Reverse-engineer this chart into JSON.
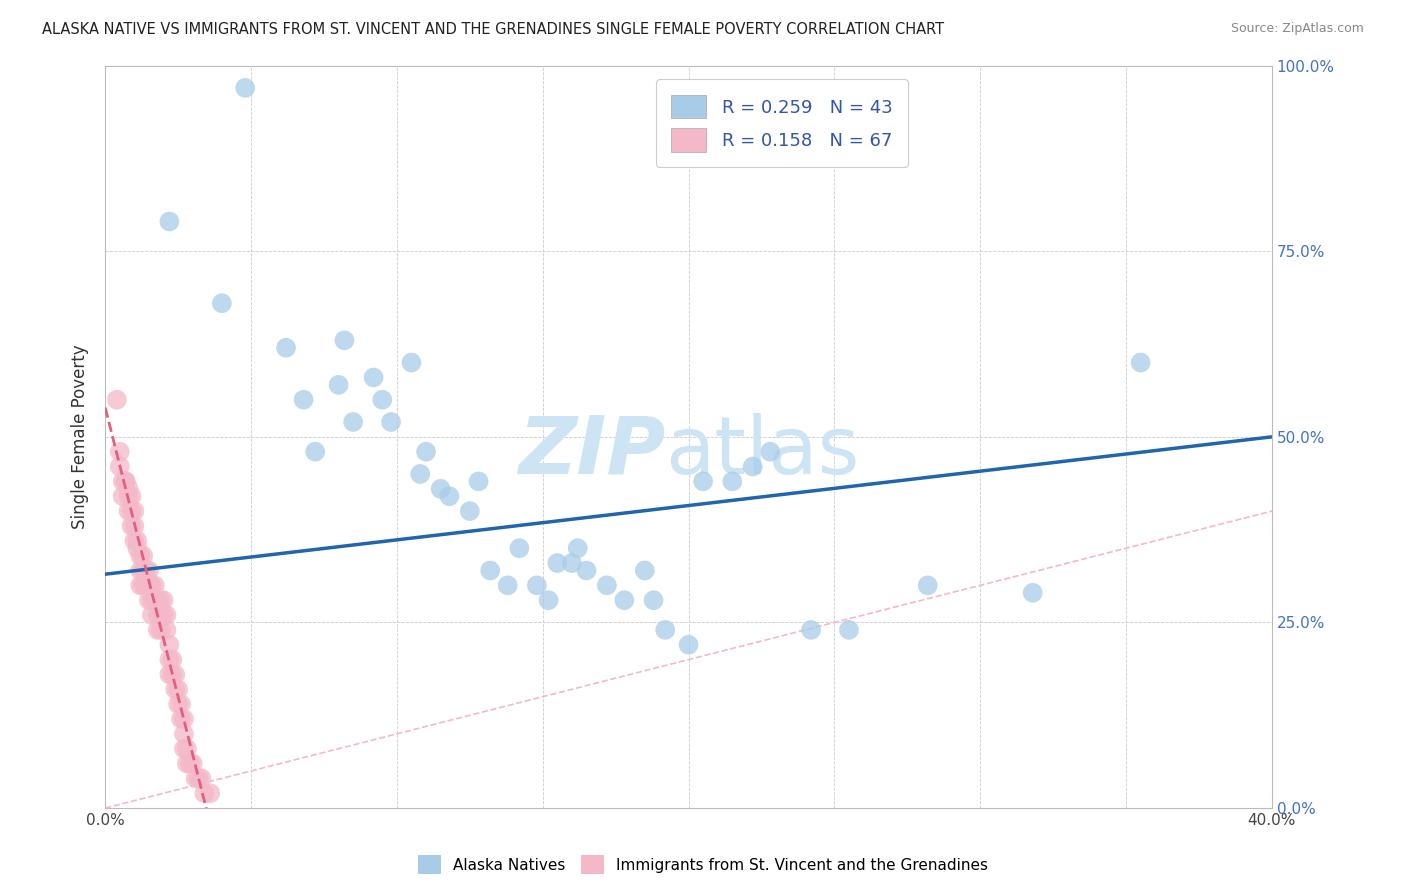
{
  "title": "ALASKA NATIVE VS IMMIGRANTS FROM ST. VINCENT AND THE GRENADINES SINGLE FEMALE POVERTY CORRELATION CHART",
  "source": "Source: ZipAtlas.com",
  "ylabel": "Single Female Poverty",
  "xlim": [
    0.0,
    0.4
  ],
  "ylim": [
    0.0,
    1.0
  ],
  "legend_R1": "R = 0.259",
  "legend_N1": "N = 43",
  "legend_R2": "R = 0.158",
  "legend_N2": "N = 67",
  "blue_color": "#a8cce8",
  "pink_color": "#f4b8c8",
  "blue_line_color": "#2166ac",
  "pink_line_color": "#e0607e",
  "diag_color": "#f4b8c8",
  "watermark_color": "#cde4f4",
  "blue_x": [
    0.048,
    0.022,
    0.04,
    0.062,
    0.068,
    0.072,
    0.08,
    0.082,
    0.085,
    0.092,
    0.095,
    0.098,
    0.105,
    0.108,
    0.11,
    0.115,
    0.118,
    0.125,
    0.128,
    0.132,
    0.138,
    0.142,
    0.148,
    0.152,
    0.155,
    0.16,
    0.162,
    0.165,
    0.172,
    0.178,
    0.185,
    0.188,
    0.192,
    0.2,
    0.205,
    0.215,
    0.222,
    0.228,
    0.242,
    0.255,
    0.282,
    0.318,
    0.355
  ],
  "blue_y": [
    0.97,
    0.79,
    0.68,
    0.62,
    0.55,
    0.48,
    0.57,
    0.63,
    0.52,
    0.58,
    0.55,
    0.52,
    0.6,
    0.45,
    0.48,
    0.43,
    0.42,
    0.4,
    0.44,
    0.32,
    0.3,
    0.35,
    0.3,
    0.28,
    0.33,
    0.33,
    0.35,
    0.32,
    0.3,
    0.28,
    0.32,
    0.28,
    0.24,
    0.22,
    0.44,
    0.44,
    0.46,
    0.48,
    0.24,
    0.24,
    0.3,
    0.29,
    0.6
  ],
  "pink_x": [
    0.004,
    0.005,
    0.005,
    0.006,
    0.006,
    0.007,
    0.007,
    0.008,
    0.008,
    0.008,
    0.009,
    0.009,
    0.009,
    0.01,
    0.01,
    0.01,
    0.011,
    0.011,
    0.012,
    0.012,
    0.012,
    0.013,
    0.013,
    0.013,
    0.014,
    0.014,
    0.015,
    0.015,
    0.015,
    0.016,
    0.016,
    0.016,
    0.017,
    0.017,
    0.018,
    0.018,
    0.018,
    0.019,
    0.019,
    0.019,
    0.02,
    0.02,
    0.021,
    0.021,
    0.022,
    0.022,
    0.022,
    0.023,
    0.023,
    0.024,
    0.024,
    0.025,
    0.025,
    0.026,
    0.026,
    0.027,
    0.027,
    0.027,
    0.028,
    0.028,
    0.029,
    0.03,
    0.031,
    0.032,
    0.033,
    0.034,
    0.036
  ],
  "pink_y": [
    0.55,
    0.46,
    0.48,
    0.44,
    0.42,
    0.44,
    0.44,
    0.43,
    0.42,
    0.4,
    0.42,
    0.4,
    0.38,
    0.4,
    0.38,
    0.36,
    0.36,
    0.35,
    0.34,
    0.32,
    0.3,
    0.34,
    0.32,
    0.3,
    0.32,
    0.3,
    0.32,
    0.3,
    0.28,
    0.28,
    0.26,
    0.3,
    0.3,
    0.28,
    0.28,
    0.26,
    0.24,
    0.28,
    0.26,
    0.24,
    0.28,
    0.26,
    0.26,
    0.24,
    0.22,
    0.2,
    0.18,
    0.2,
    0.18,
    0.18,
    0.16,
    0.16,
    0.14,
    0.14,
    0.12,
    0.12,
    0.1,
    0.08,
    0.08,
    0.06,
    0.06,
    0.06,
    0.04,
    0.04,
    0.04,
    0.02,
    0.02
  ]
}
